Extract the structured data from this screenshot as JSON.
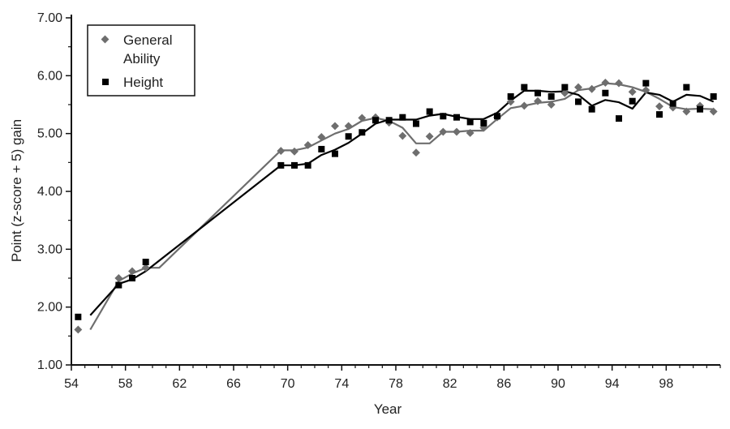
{
  "chart_data": {
    "type": "scatter",
    "xlabel": "Year",
    "ylabel": "Point (z-score + 5) gain",
    "xlim": [
      54,
      102
    ],
    "ylim": [
      1.0,
      7.0
    ],
    "x_ticks": [
      54,
      58,
      62,
      66,
      70,
      74,
      78,
      82,
      86,
      90,
      94,
      98
    ],
    "y_ticks": [
      1.0,
      2.0,
      3.0,
      4.0,
      5.0,
      6.0,
      7.0
    ],
    "y_tick_labels": [
      "1.00",
      "2.00",
      "3.00",
      "4.00",
      "5.00",
      "6.00",
      "7.00"
    ],
    "legend": {
      "position": "top-left",
      "entries": [
        "General\nAbility",
        "Height"
      ]
    },
    "series": [
      {
        "name": "General Ability",
        "marker": "diamond",
        "color": "#6e6e6e",
        "points": [
          [
            54.5,
            1.61
          ],
          [
            57.5,
            2.5
          ],
          [
            58.5,
            2.62
          ],
          [
            59.5,
            2.68
          ],
          [
            69.5,
            4.7
          ],
          [
            70.5,
            4.69
          ],
          [
            71.5,
            4.8
          ],
          [
            72.5,
            4.94
          ],
          [
            73.5,
            5.13
          ],
          [
            74.5,
            5.13
          ],
          [
            75.5,
            5.27
          ],
          [
            76.5,
            5.28
          ],
          [
            77.5,
            5.19
          ],
          [
            78.5,
            4.96
          ],
          [
            79.5,
            4.67
          ],
          [
            80.5,
            4.95
          ],
          [
            81.5,
            5.03
          ],
          [
            82.5,
            5.03
          ],
          [
            83.5,
            5.01
          ],
          [
            84.5,
            5.1
          ],
          [
            85.5,
            5.28
          ],
          [
            86.5,
            5.55
          ],
          [
            87.5,
            5.48
          ],
          [
            88.5,
            5.56
          ],
          [
            89.5,
            5.5
          ],
          [
            90.5,
            5.7
          ],
          [
            91.5,
            5.8
          ],
          [
            92.5,
            5.77
          ],
          [
            93.5,
            5.88
          ],
          [
            94.5,
            5.87
          ],
          [
            95.5,
            5.72
          ],
          [
            96.5,
            5.75
          ],
          [
            97.5,
            5.47
          ],
          [
            98.5,
            5.45
          ],
          [
            99.5,
            5.38
          ],
          [
            100.5,
            5.48
          ],
          [
            101.5,
            5.38
          ]
        ],
        "trend": [
          [
            55.4,
            1.61
          ],
          [
            57.5,
            2.45
          ],
          [
            58.5,
            2.58
          ],
          [
            59.5,
            2.68
          ],
          [
            60.5,
            2.68
          ],
          [
            69.5,
            4.71
          ],
          [
            70.5,
            4.71
          ],
          [
            71.5,
            4.76
          ],
          [
            72.5,
            4.88
          ],
          [
            73.5,
            5.0
          ],
          [
            74.5,
            5.08
          ],
          [
            75.5,
            5.22
          ],
          [
            76.5,
            5.27
          ],
          [
            77.5,
            5.22
          ],
          [
            78.5,
            5.1
          ],
          [
            79.5,
            4.83
          ],
          [
            80.5,
            4.83
          ],
          [
            81.5,
            5.03
          ],
          [
            82.5,
            5.03
          ],
          [
            83.5,
            5.05
          ],
          [
            84.5,
            5.05
          ],
          [
            85.5,
            5.25
          ],
          [
            86.5,
            5.44
          ],
          [
            87.5,
            5.48
          ],
          [
            88.5,
            5.53
          ],
          [
            89.5,
            5.55
          ],
          [
            90.5,
            5.6
          ],
          [
            91.5,
            5.75
          ],
          [
            92.5,
            5.78
          ],
          [
            93.5,
            5.87
          ],
          [
            94.5,
            5.85
          ],
          [
            95.5,
            5.8
          ],
          [
            96.5,
            5.72
          ],
          [
            97.5,
            5.6
          ],
          [
            98.5,
            5.46
          ],
          [
            99.5,
            5.42
          ],
          [
            100.5,
            5.43
          ],
          [
            101.5,
            5.42
          ]
        ]
      },
      {
        "name": "Height",
        "marker": "square",
        "color": "#000000",
        "points": [
          [
            54.5,
            1.83
          ],
          [
            57.5,
            2.38
          ],
          [
            58.5,
            2.5
          ],
          [
            59.5,
            2.78
          ],
          [
            69.5,
            4.45
          ],
          [
            70.5,
            4.45
          ],
          [
            71.5,
            4.45
          ],
          [
            72.5,
            4.73
          ],
          [
            73.5,
            4.65
          ],
          [
            74.5,
            4.95
          ],
          [
            75.5,
            5.02
          ],
          [
            76.5,
            5.23
          ],
          [
            77.5,
            5.23
          ],
          [
            78.5,
            5.28
          ],
          [
            79.5,
            5.17
          ],
          [
            80.5,
            5.38
          ],
          [
            81.5,
            5.3
          ],
          [
            82.5,
            5.28
          ],
          [
            83.5,
            5.2
          ],
          [
            84.5,
            5.18
          ],
          [
            85.5,
            5.3
          ],
          [
            86.5,
            5.64
          ],
          [
            87.5,
            5.8
          ],
          [
            88.5,
            5.7
          ],
          [
            89.5,
            5.64
          ],
          [
            90.5,
            5.8
          ],
          [
            91.5,
            5.55
          ],
          [
            92.5,
            5.42
          ],
          [
            93.5,
            5.7
          ],
          [
            94.5,
            5.26
          ],
          [
            95.5,
            5.56
          ],
          [
            96.5,
            5.87
          ],
          [
            97.5,
            5.33
          ],
          [
            98.5,
            5.52
          ],
          [
            99.5,
            5.8
          ],
          [
            100.5,
            5.42
          ],
          [
            101.5,
            5.64
          ]
        ],
        "trend": [
          [
            55.4,
            1.86
          ],
          [
            57.5,
            2.4
          ],
          [
            58.5,
            2.48
          ],
          [
            59.5,
            2.62
          ],
          [
            69.5,
            4.45
          ],
          [
            70.5,
            4.45
          ],
          [
            71.5,
            4.48
          ],
          [
            72.5,
            4.63
          ],
          [
            73.5,
            4.72
          ],
          [
            74.5,
            4.84
          ],
          [
            75.5,
            5.0
          ],
          [
            76.5,
            5.17
          ],
          [
            77.5,
            5.24
          ],
          [
            78.5,
            5.24
          ],
          [
            79.5,
            5.24
          ],
          [
            80.5,
            5.31
          ],
          [
            81.5,
            5.34
          ],
          [
            82.5,
            5.29
          ],
          [
            83.5,
            5.25
          ],
          [
            84.5,
            5.25
          ],
          [
            85.5,
            5.36
          ],
          [
            86.5,
            5.57
          ],
          [
            87.5,
            5.74
          ],
          [
            88.5,
            5.74
          ],
          [
            89.5,
            5.72
          ],
          [
            90.5,
            5.73
          ],
          [
            91.5,
            5.67
          ],
          [
            92.5,
            5.48
          ],
          [
            93.5,
            5.58
          ],
          [
            94.5,
            5.54
          ],
          [
            95.5,
            5.43
          ],
          [
            96.5,
            5.71
          ],
          [
            97.5,
            5.67
          ],
          [
            98.5,
            5.55
          ],
          [
            99.5,
            5.67
          ],
          [
            100.5,
            5.65
          ],
          [
            101.5,
            5.55
          ]
        ]
      }
    ]
  }
}
